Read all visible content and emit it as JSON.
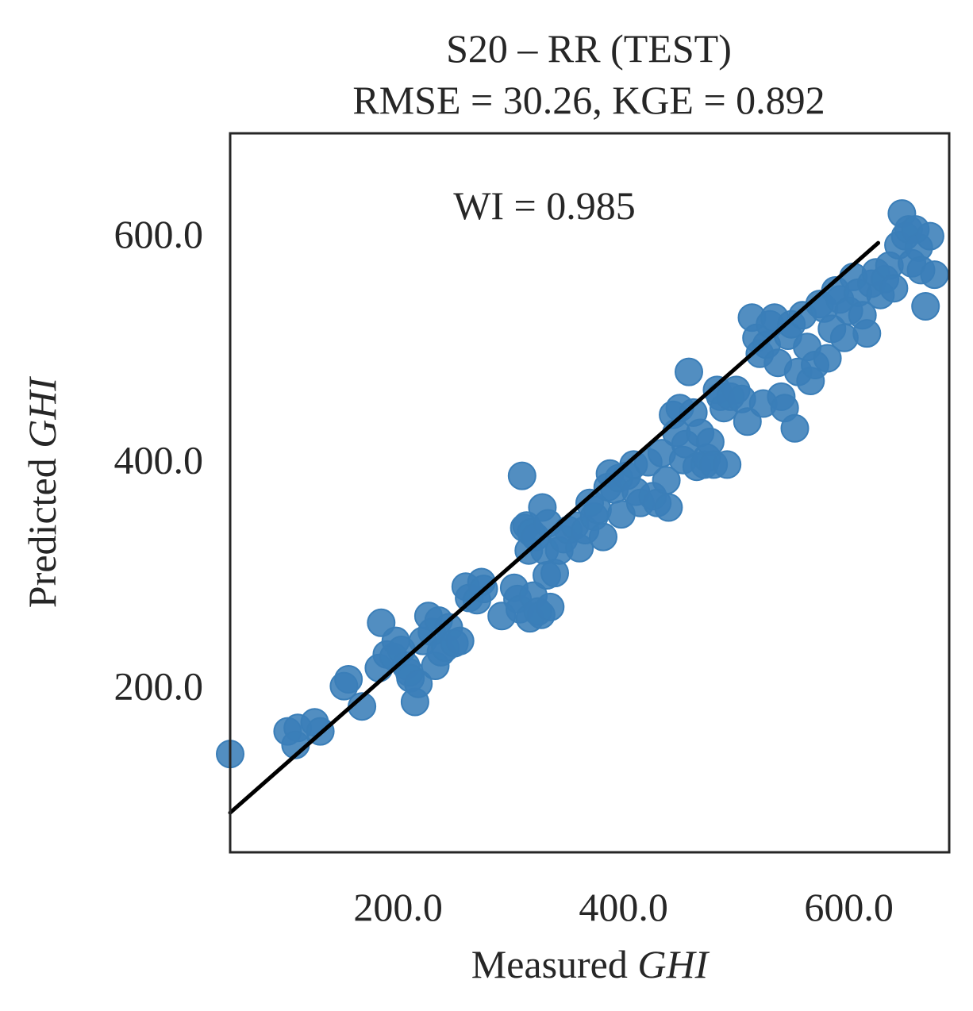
{
  "chart_data": {
    "type": "scatter",
    "title_line1": "S20 – RR (TEST)",
    "title_line2": "RMSE = 30.26, KGE = 0.892",
    "annotation": "WI = 0.985",
    "xlabel_prefix": "Measured ",
    "xlabel_var": "GHI",
    "ylabel_prefix": "Predicted ",
    "ylabel_var": "GHI",
    "xlim": [
      51,
      689
    ],
    "ylim": [
      53,
      689
    ],
    "xticks": [
      200.0,
      400.0,
      600.0
    ],
    "yticks": [
      200.0,
      400.0,
      600.0
    ],
    "xtick_labels": [
      "200.0",
      "400.0",
      "600.0"
    ],
    "ytick_labels": [
      "200.0",
      "400.0",
      "600.0"
    ],
    "grid": false,
    "point_color": "#3a7eb8",
    "line_color": "#000000",
    "fit_line": {
      "x": [
        51,
        626
      ],
      "y": [
        88,
        592
      ]
    },
    "points": [
      [
        51,
        140
      ],
      [
        102,
        160
      ],
      [
        111,
        163
      ],
      [
        109,
        148
      ],
      [
        126,
        168
      ],
      [
        131,
        160
      ],
      [
        152,
        200
      ],
      [
        156,
        206
      ],
      [
        168,
        182
      ],
      [
        183,
        216
      ],
      [
        185,
        256
      ],
      [
        190,
        228
      ],
      [
        196,
        226
      ],
      [
        198,
        240
      ],
      [
        203,
        232
      ],
      [
        207,
        218
      ],
      [
        210,
        212
      ],
      [
        211,
        207
      ],
      [
        215,
        186
      ],
      [
        218,
        202
      ],
      [
        222,
        240
      ],
      [
        227,
        262
      ],
      [
        230,
        248
      ],
      [
        233,
        218
      ],
      [
        236,
        258
      ],
      [
        238,
        230
      ],
      [
        242,
        234
      ],
      [
        245,
        252
      ],
      [
        250,
        238
      ],
      [
        255,
        240
      ],
      [
        260,
        288
      ],
      [
        263,
        278
      ],
      [
        270,
        276
      ],
      [
        274,
        292
      ],
      [
        276,
        286
      ],
      [
        292,
        262
      ],
      [
        303,
        287
      ],
      [
        306,
        277
      ],
      [
        308,
        268
      ],
      [
        310,
        386
      ],
      [
        312,
        340
      ],
      [
        314,
        342
      ],
      [
        316,
        320
      ],
      [
        317,
        260
      ],
      [
        318,
        336
      ],
      [
        320,
        280
      ],
      [
        322,
        332
      ],
      [
        324,
        266
      ],
      [
        327,
        263
      ],
      [
        328,
        358
      ],
      [
        330,
        320
      ],
      [
        332,
        298
      ],
      [
        333,
        344
      ],
      [
        335,
        270
      ],
      [
        339,
        300
      ],
      [
        343,
        320
      ],
      [
        347,
        330
      ],
      [
        351,
        338
      ],
      [
        357,
        342
      ],
      [
        361,
        322
      ],
      [
        366,
        338
      ],
      [
        370,
        362
      ],
      [
        374,
        350
      ],
      [
        377,
        356
      ],
      [
        382,
        332
      ],
      [
        386,
        376
      ],
      [
        388,
        388
      ],
      [
        392,
        374
      ],
      [
        396,
        384
      ],
      [
        398,
        352
      ],
      [
        403,
        386
      ],
      [
        409,
        396
      ],
      [
        411,
        372
      ],
      [
        415,
        362
      ],
      [
        422,
        398
      ],
      [
        426,
        368
      ],
      [
        430,
        362
      ],
      [
        434,
        406
      ],
      [
        438,
        382
      ],
      [
        440,
        358
      ],
      [
        444,
        440
      ],
      [
        447,
        424
      ],
      [
        450,
        446
      ],
      [
        453,
        400
      ],
      [
        455,
        414
      ],
      [
        458,
        478
      ],
      [
        462,
        442
      ],
      [
        465,
        394
      ],
      [
        468,
        424
      ],
      [
        472,
        396
      ],
      [
        474,
        402
      ],
      [
        477,
        416
      ],
      [
        480,
        396
      ],
      [
        483,
        462
      ],
      [
        486,
        456
      ],
      [
        489,
        446
      ],
      [
        492,
        396
      ],
      [
        495,
        456
      ],
      [
        500,
        462
      ],
      [
        505,
        454
      ],
      [
        510,
        434
      ],
      [
        514,
        526
      ],
      [
        518,
        508
      ],
      [
        521,
        494
      ],
      [
        524,
        450
      ],
      [
        527,
        502
      ],
      [
        530,
        520
      ],
      [
        534,
        526
      ],
      [
        537,
        486
      ],
      [
        540,
        456
      ],
      [
        543,
        446
      ],
      [
        546,
        510
      ],
      [
        549,
        520
      ],
      [
        552,
        428
      ],
      [
        555,
        478
      ],
      [
        559,
        528
      ],
      [
        563,
        500
      ],
      [
        566,
        470
      ],
      [
        570,
        484
      ],
      [
        574,
        538
      ],
      [
        578,
        534
      ],
      [
        581,
        490
      ],
      [
        585,
        516
      ],
      [
        588,
        550
      ],
      [
        592,
        542
      ],
      [
        596,
        508
      ],
      [
        600,
        532
      ],
      [
        604,
        562
      ],
      [
        608,
        548
      ],
      [
        612,
        528
      ],
      [
        616,
        512
      ],
      [
        620,
        556
      ],
      [
        624,
        566
      ],
      [
        628,
        546
      ],
      [
        632,
        560
      ],
      [
        636,
        572
      ],
      [
        640,
        552
      ],
      [
        644,
        590
      ],
      [
        647,
        618
      ],
      [
        650,
        598
      ],
      [
        653,
        604
      ],
      [
        656,
        574
      ],
      [
        659,
        604
      ],
      [
        662,
        588
      ],
      [
        664,
        568
      ],
      [
        668,
        536
      ],
      [
        672,
        598
      ],
      [
        676,
        564
      ]
    ]
  }
}
